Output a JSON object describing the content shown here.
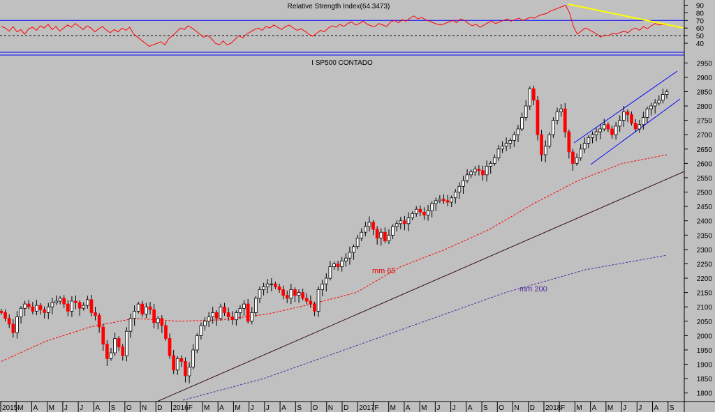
{
  "colors": {
    "background": "#c0c0c0",
    "up_candle": "#ffffff",
    "down_candle": "#ff0000",
    "candle_outline": "#000000",
    "rsi_line": "#ff0000",
    "mm65": "#ff0000",
    "mm200": "#4b2a9c",
    "trendline": "#5a1a1a",
    "channel": "#0000ff",
    "rsi_trend": "#ffff00",
    "frame": "#0000ff"
  },
  "chart_data": [
    {
      "type": "line",
      "title": "Relative Strength Index(64.3473)",
      "ylim": [
        30,
        95
      ],
      "yticks": [
        40,
        50,
        60,
        70,
        80,
        90
      ],
      "reference_lines": [
        70,
        50
      ],
      "series": [
        {
          "values": [
            62,
            60,
            56,
            62,
            55,
            58,
            52,
            59,
            61,
            57,
            63,
            60,
            65,
            58,
            62,
            56,
            60,
            64,
            61,
            66,
            62,
            58,
            63,
            60,
            55,
            59,
            62,
            57,
            54,
            58,
            55,
            60,
            57,
            61,
            52,
            48,
            44,
            40,
            36,
            38,
            40,
            42,
            38,
            46,
            50,
            55,
            60,
            58,
            63,
            60,
            56,
            52,
            48,
            50,
            46,
            40,
            38,
            43,
            38,
            40,
            45,
            50,
            47,
            52,
            55,
            58,
            60,
            57,
            62,
            60,
            64,
            61,
            58,
            62,
            64,
            60,
            57,
            59,
            56,
            52,
            49,
            53,
            57,
            55,
            60,
            63,
            61,
            65,
            62,
            66,
            68,
            64,
            66,
            69,
            65,
            63,
            62,
            66,
            64,
            62,
            68,
            70,
            67,
            71,
            69,
            73,
            76,
            72,
            74,
            71,
            69,
            67,
            65,
            64,
            66,
            68,
            70,
            67,
            72,
            70,
            66,
            63,
            65,
            61,
            64,
            67,
            69,
            66,
            68,
            70,
            72,
            69,
            71,
            73,
            70,
            72,
            74,
            73,
            76,
            78,
            79,
            82,
            84,
            86,
            88,
            90,
            80,
            62,
            52,
            56,
            60,
            58,
            55,
            52,
            48,
            51,
            50,
            53,
            52,
            54,
            56,
            54,
            58,
            60,
            57,
            62,
            59,
            63,
            66,
            64,
            65,
            64
          ]
        }
      ]
    },
    {
      "type": "bar",
      "title": "I SP500 CONTADO",
      "ylim": [
        1775,
        2975
      ],
      "yticks": [
        1800,
        1850,
        1900,
        1950,
        2000,
        2050,
        2100,
        2150,
        2200,
        2250,
        2300,
        2350,
        2400,
        2450,
        2500,
        2550,
        2600,
        2650,
        2700,
        2750,
        2800,
        2850,
        2900,
        2950
      ],
      "x_labels": [
        "2015",
        "M",
        "A",
        "M",
        "J",
        "J",
        "A",
        "S",
        "O",
        "N",
        "D",
        "2016",
        "F",
        "M",
        "A",
        "M",
        "J",
        "J",
        "A",
        "S",
        "O",
        "N",
        "D",
        "2017",
        "F",
        "M",
        "A",
        "M",
        "J",
        "J",
        "A",
        "S",
        "O",
        "N",
        "D",
        "2018",
        "F",
        "M",
        "A",
        "M",
        "J",
        "J",
        "A",
        "S"
      ],
      "closes": [
        2080,
        2060,
        2040,
        2010,
        2065,
        2095,
        2110,
        2100,
        2085,
        2105,
        2090,
        2080,
        2100,
        2115,
        2120,
        2130,
        2110,
        2085,
        2120,
        2115,
        2095,
        2105,
        2125,
        2080,
        2070,
        2030,
        1970,
        1920,
        1940,
        1990,
        1960,
        1930,
        2015,
        2060,
        2085,
        2110,
        2075,
        2100,
        2090,
        2045,
        2060,
        2035,
        1990,
        1930,
        1880,
        1920,
        1910,
        1860,
        1890,
        1950,
        2000,
        2035,
        2050,
        2065,
        2080,
        2060,
        2100,
        2080,
        2065,
        2055,
        2080,
        2095,
        2110,
        2050,
        2080,
        2130,
        2160,
        2170,
        2180,
        2180,
        2170,
        2160,
        2140,
        2130,
        2160,
        2140,
        2150,
        2130,
        2120,
        2110,
        2085,
        2160,
        2180,
        2200,
        2240,
        2250,
        2240,
        2260,
        2270,
        2290,
        2310,
        2340,
        2360,
        2380,
        2395,
        2370,
        2340,
        2360,
        2330,
        2350,
        2380,
        2390,
        2400,
        2390,
        2410,
        2425,
        2440,
        2430,
        2420,
        2435,
        2460,
        2470,
        2475,
        2470,
        2465,
        2480,
        2500,
        2520,
        2540,
        2560,
        2570,
        2580,
        2575,
        2560,
        2590,
        2600,
        2620,
        2650,
        2660,
        2670,
        2680,
        2700,
        2720,
        2760,
        2800,
        2860,
        2820,
        2700,
        2630,
        2660,
        2700,
        2750,
        2780,
        2790,
        2710,
        2640,
        2600,
        2620,
        2650,
        2670,
        2690,
        2700,
        2710,
        2720,
        2735,
        2720,
        2700,
        2730,
        2750,
        2780,
        2770,
        2740,
        2720,
        2735,
        2760,
        2790,
        2800,
        2810,
        2820,
        2840,
        2850
      ],
      "series": [
        {
          "name": "mm 65",
          "values": [
            1910,
            1980,
            2030,
            2060,
            2050,
            2055,
            2075,
            2110,
            2150,
            2240,
            2300,
            2370,
            2460,
            2540,
            2600,
            2630
          ]
        },
        {
          "name": "mm 200",
          "values": [
            1775,
            1850,
            1950,
            2050,
            2150,
            2230,
            2280
          ]
        }
      ],
      "annotations": [
        "mm 65",
        "mm 200"
      ]
    }
  ]
}
